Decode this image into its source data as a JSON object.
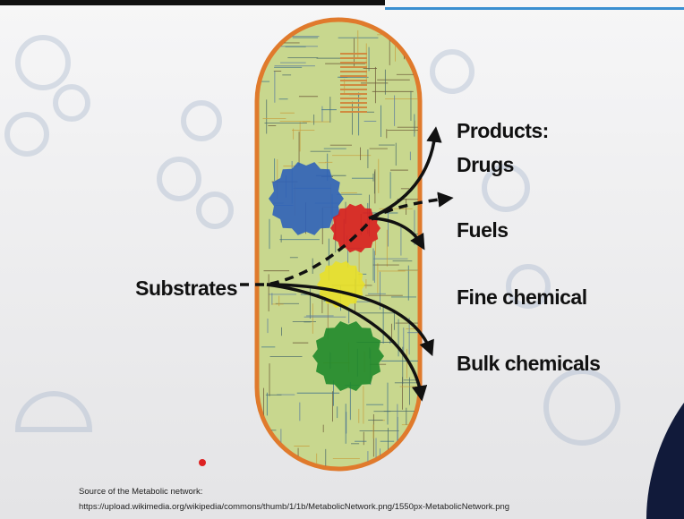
{
  "labels": {
    "products": "Products:",
    "drugs": "Drugs",
    "fuels": "Fuels",
    "fine": "Fine chemical",
    "bulk": "Bulk chemicals",
    "substrates": "Substrates"
  },
  "source": {
    "title": "Source of the Metabolic network:",
    "url": "https://upload.wikimedia.org/wikipedia/commons/thumb/1/1b/MetabolicNetwork.png/1550px-MetabolicNetwork.png"
  }
}
